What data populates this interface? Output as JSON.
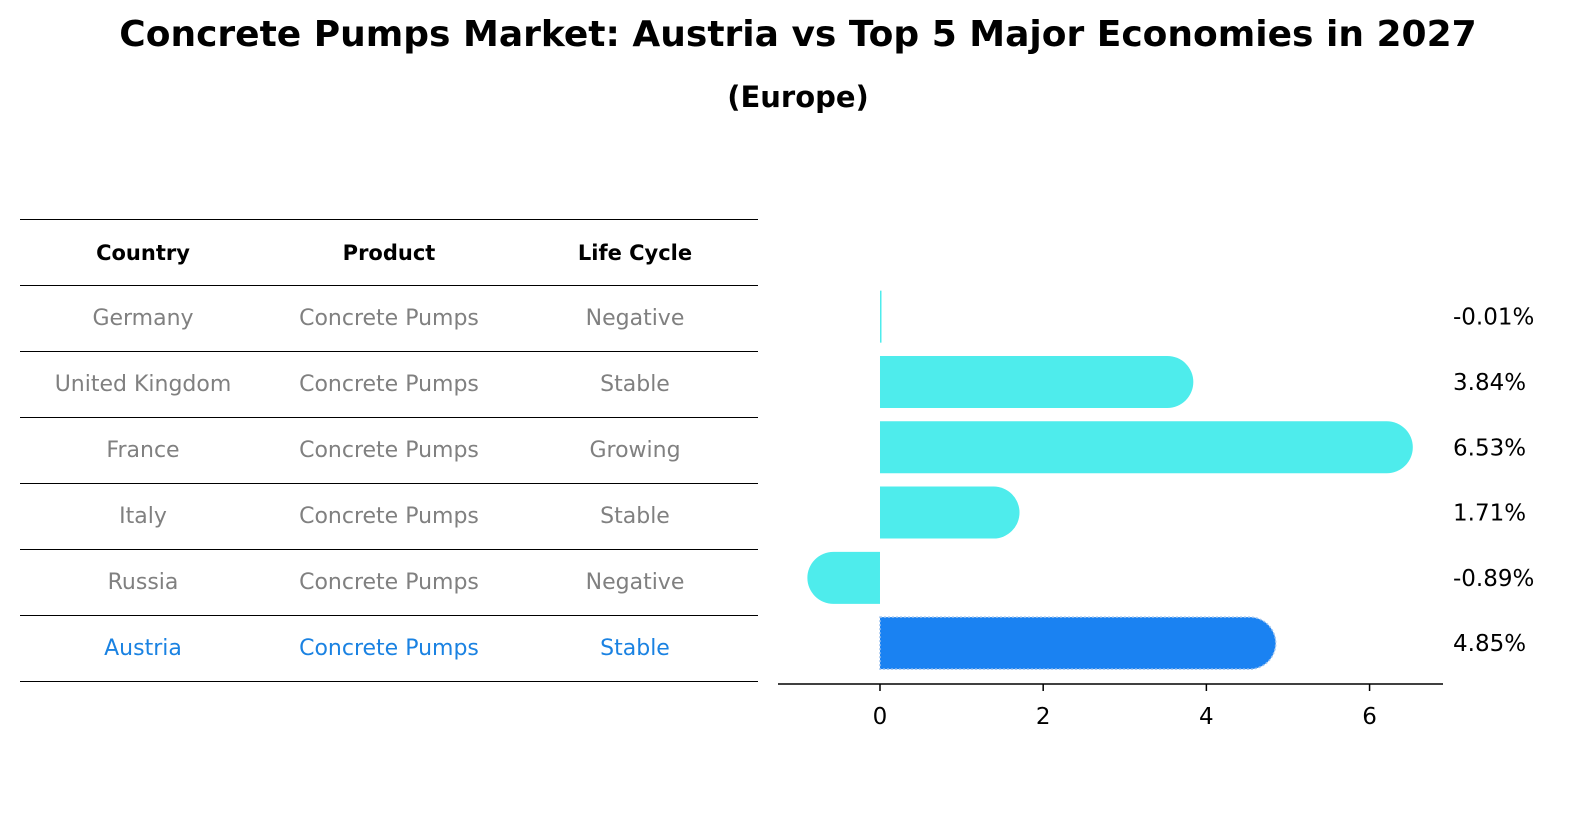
{
  "title": "Concrete Pumps Market: Austria vs Top 5 Major Economies in 2027",
  "subtitle": "(Europe)",
  "table": {
    "headers": [
      "Country",
      "Product",
      "Life Cycle"
    ],
    "rows": [
      {
        "country": "Germany",
        "product": "Concrete Pumps",
        "life_cycle": "Negative"
      },
      {
        "country": "United Kingdom",
        "product": "Concrete Pumps",
        "life_cycle": "Stable"
      },
      {
        "country": "France",
        "product": "Concrete Pumps",
        "life_cycle": "Growing"
      },
      {
        "country": "Italy",
        "product": "Concrete Pumps",
        "life_cycle": "Stable"
      },
      {
        "country": "Russia",
        "product": "Concrete Pumps",
        "life_cycle": "Negative"
      },
      {
        "country": "Austria",
        "product": "Concrete Pumps",
        "life_cycle": "Stable"
      }
    ]
  },
  "chart_data": {
    "type": "bar",
    "orientation": "horizontal",
    "categories": [
      "Germany",
      "United Kingdom",
      "France",
      "Italy",
      "Russia",
      "Austria"
    ],
    "values": [
      -0.01,
      3.84,
      6.53,
      1.71,
      -0.89,
      4.85
    ],
    "value_labels": [
      "-0.01%",
      "3.84%",
      "6.53%",
      "1.71%",
      "-0.89%",
      "4.85%"
    ],
    "highlight_index": 5,
    "xlim": [
      -1.25,
      6.9
    ],
    "xticks": [
      0,
      2,
      4,
      6
    ],
    "grid": false,
    "colors": {
      "default": "#4eecec",
      "highlight": "#1a82f2",
      "highlight_text": "#1a82e2",
      "muted_text": "#808080"
    }
  }
}
